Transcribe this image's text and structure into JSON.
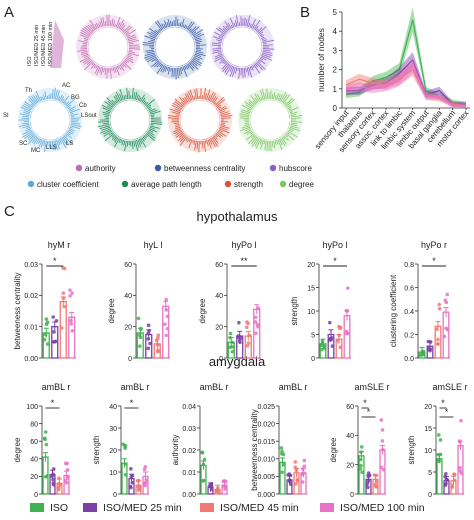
{
  "panels": {
    "a": "A",
    "b": "B",
    "c": "C"
  },
  "colors": {
    "iso": "#3fb34f",
    "med25": "#7b3fa6",
    "med45": "#f07a72",
    "med100": "#e872c8",
    "authority": "#c36ab4",
    "betweenness": "#3a5ca8",
    "hubscore": "#8a5fc6",
    "cluster": "#5aa9dc",
    "pathlength": "#1e8a5a",
    "strength": "#d9523a",
    "degree": "#7cc663"
  },
  "panel_a": {
    "group_labels": [
      "ISO",
      "ISO/MED 25 min",
      "ISO/MED 45 min",
      "ISO/MED 100 min"
    ],
    "region_labels": [
      "Th",
      "AC",
      "BG",
      "Cb",
      "LSout",
      "SI",
      "SC",
      "MC",
      "LLS",
      "LS"
    ],
    "legend": [
      {
        "label": "authority",
        "color": "#c36ab4"
      },
      {
        "label": "betweenness centrality",
        "color": "#3a5ca8"
      },
      {
        "label": "hubscore",
        "color": "#8a5fc6"
      },
      {
        "label": "cluster coefficient",
        "color": "#5aa9dc"
      },
      {
        "label": "average path length",
        "color": "#1e8a5a"
      },
      {
        "label": "strength",
        "color": "#d9523a"
      },
      {
        "label": "degree",
        "color": "#7cc663"
      }
    ]
  },
  "chart_data": [
    {
      "id": "B",
      "type": "area",
      "ylabel": "number of nodes",
      "ylim": [
        0,
        5
      ],
      "yticks": [
        0,
        1,
        2,
        3,
        4,
        5
      ],
      "categories": [
        "sensory input",
        "thalamus",
        "sensory cortex",
        "assoc. cortex",
        "link to limbic",
        "limbic system",
        "limbic output",
        "basal ganglia",
        "cerebellum",
        "motor cortex"
      ],
      "series": [
        {
          "color": "#3fb34f",
          "values": [
            0.7,
            0.8,
            1.4,
            1.6,
            2.0,
            4.6,
            0.9,
            0.6,
            0.3,
            0.2
          ]
        },
        {
          "color": "#7b3fa6",
          "values": [
            0.9,
            0.9,
            1.2,
            1.3,
            1.8,
            2.5,
            0.7,
            0.9,
            0.2,
            0.2
          ]
        },
        {
          "color": "#f07a72",
          "values": [
            1.2,
            1.5,
            1.3,
            1.2,
            1.5,
            2.0,
            0.6,
            0.5,
            0.2,
            0.1
          ]
        },
        {
          "color": "#e872c8",
          "values": [
            1.0,
            1.1,
            1.0,
            1.1,
            1.4,
            2.2,
            0.6,
            0.6,
            0.1,
            0.1
          ]
        }
      ]
    },
    {
      "id": "hyM r",
      "type": "bar",
      "region": "hypothalamus",
      "ylabel": "betweeness centrality",
      "ylim": [
        0,
        0.03
      ],
      "yticks": [
        0,
        0.01,
        0.02,
        0.03
      ],
      "ytick_labels": [
        "0.00",
        "0.01",
        "0.02",
        "0.03"
      ],
      "values": [
        0.008,
        0.01,
        0.018,
        0.013
      ],
      "sig": [
        {
          "from": 0,
          "to": 2,
          "label": "*"
        }
      ]
    },
    {
      "id": "hyL l",
      "type": "bar",
      "region": "hypothalamus",
      "ylabel": "degree",
      "ylim": [
        0,
        60
      ],
      "yticks": [
        0,
        20,
        40,
        60
      ],
      "ytick_labels": [
        "0",
        "20",
        "40",
        "60"
      ],
      "values": [
        16,
        15,
        9,
        33
      ],
      "sig": []
    },
    {
      "id": "hyPo l",
      "type": "bar",
      "region": "hypothalamus",
      "ylabel": "degree",
      "ylim": [
        0,
        60
      ],
      "yticks": [
        0,
        20,
        40,
        60
      ],
      "ytick_labels": [
        "0",
        "20",
        "40",
        "60"
      ],
      "values": [
        10,
        14,
        14,
        31
      ],
      "sig": [
        {
          "from": 0,
          "to": 3,
          "label": "**"
        }
      ]
    },
    {
      "id": "hyPo l",
      "type": "bar",
      "region": "hypothalamus",
      "ylabel": "strength",
      "ylim": [
        0,
        20
      ],
      "yticks": [
        0,
        5,
        10,
        15,
        20
      ],
      "ytick_labels": [
        "0",
        "5",
        "10",
        "15",
        "20"
      ],
      "values": [
        3,
        5,
        4,
        9
      ],
      "sig": [
        {
          "from": 0,
          "to": 3,
          "label": "*"
        }
      ]
    },
    {
      "id": "hyPo r",
      "type": "bar",
      "region": "hypothalamus",
      "ylabel": "clustering coefficient",
      "ylim": [
        0,
        0.8
      ],
      "yticks": [
        0,
        0.2,
        0.4,
        0.6,
        0.8
      ],
      "ytick_labels": [
        "0.0",
        "0.2",
        "0.4",
        "0.6",
        "0.8"
      ],
      "values": [
        0.05,
        0.1,
        0.27,
        0.39
      ],
      "sig": [
        {
          "from": 0,
          "to": 3,
          "label": "*"
        }
      ]
    },
    {
      "id": "amBL r",
      "type": "bar",
      "region": "amygdala",
      "ylabel": "degree",
      "ylim": [
        0,
        100
      ],
      "yticks": [
        0,
        20,
        40,
        60,
        80,
        100
      ],
      "ytick_labels": [
        "0",
        "20",
        "40",
        "60",
        "80",
        "100"
      ],
      "values": [
        42,
        22,
        12,
        21
      ],
      "sig": [
        {
          "from": 0,
          "to": 2,
          "label": "*"
        }
      ]
    },
    {
      "id": "amBL r",
      "type": "bar",
      "region": "amygdala",
      "ylabel": "strength",
      "ylim": [
        0,
        40
      ],
      "yticks": [
        0,
        10,
        20,
        30,
        40
      ],
      "ytick_labels": [
        "0",
        "10",
        "20",
        "30",
        "40"
      ],
      "values": [
        14,
        7,
        4,
        8
      ],
      "sig": [
        {
          "from": 0,
          "to": 2,
          "label": "*"
        }
      ]
    },
    {
      "id": "amBL r",
      "type": "bar",
      "region": "amygdala",
      "ylabel": "authority",
      "ylim": [
        0,
        0.04
      ],
      "yticks": [
        0,
        0.01,
        0.02,
        0.03,
        0.04
      ],
      "ytick_labels": [
        "0.00",
        "0.01",
        "0.02",
        "0.03",
        "0.04"
      ],
      "values": [
        0.013,
        0.003,
        0.002,
        0.004
      ],
      "sig": []
    },
    {
      "id": "amBL r",
      "type": "bar",
      "region": "amygdala",
      "ylabel": "betweenness centrality",
      "ylim": [
        0,
        0.025
      ],
      "yticks": [
        0,
        0.005,
        0.01,
        0.015,
        0.02,
        0.025
      ],
      "ytick_labels": [
        "0.000",
        "0.005",
        "0.010",
        "0.015",
        "0.020",
        "0.025"
      ],
      "values": [
        0.009,
        0.004,
        0.006,
        0.006
      ],
      "sig": []
    },
    {
      "id": "amSLE r",
      "type": "bar",
      "region": "amygdala",
      "ylabel": "degree",
      "ylim": [
        0,
        60
      ],
      "yticks": [
        0,
        20,
        40,
        60
      ],
      "ytick_labels": [
        "0",
        "20",
        "40",
        "60"
      ],
      "values": [
        26,
        10,
        10,
        30
      ],
      "sig": [
        {
          "from": 0,
          "to": 1,
          "label": "*"
        },
        {
          "from": 0,
          "to": 2,
          "label": "*"
        }
      ]
    },
    {
      "id": "amSLE r",
      "type": "bar",
      "region": "amygdala",
      "ylabel": "strength",
      "ylim": [
        0,
        20
      ],
      "yticks": [
        0,
        5,
        10,
        15,
        20
      ],
      "ytick_labels": [
        "0",
        "5",
        "10",
        "15",
        "20"
      ],
      "values": [
        8,
        3,
        3,
        11
      ],
      "sig": [
        {
          "from": 0,
          "to": 1,
          "label": "*"
        },
        {
          "from": 0,
          "to": 2,
          "label": "*"
        }
      ]
    }
  ],
  "panel_c": {
    "hypothalamus_title": "hypothalamus",
    "amygdala_title": "amygdala"
  },
  "legend": [
    {
      "label": "ISO",
      "color": "#3fb34f"
    },
    {
      "label": "ISO/MED 25 min",
      "color": "#7b3fa6"
    },
    {
      "label": "ISO/MED 45 min",
      "color": "#f07a72"
    },
    {
      "label": "ISO/MED 100 min",
      "color": "#e872c8"
    }
  ]
}
